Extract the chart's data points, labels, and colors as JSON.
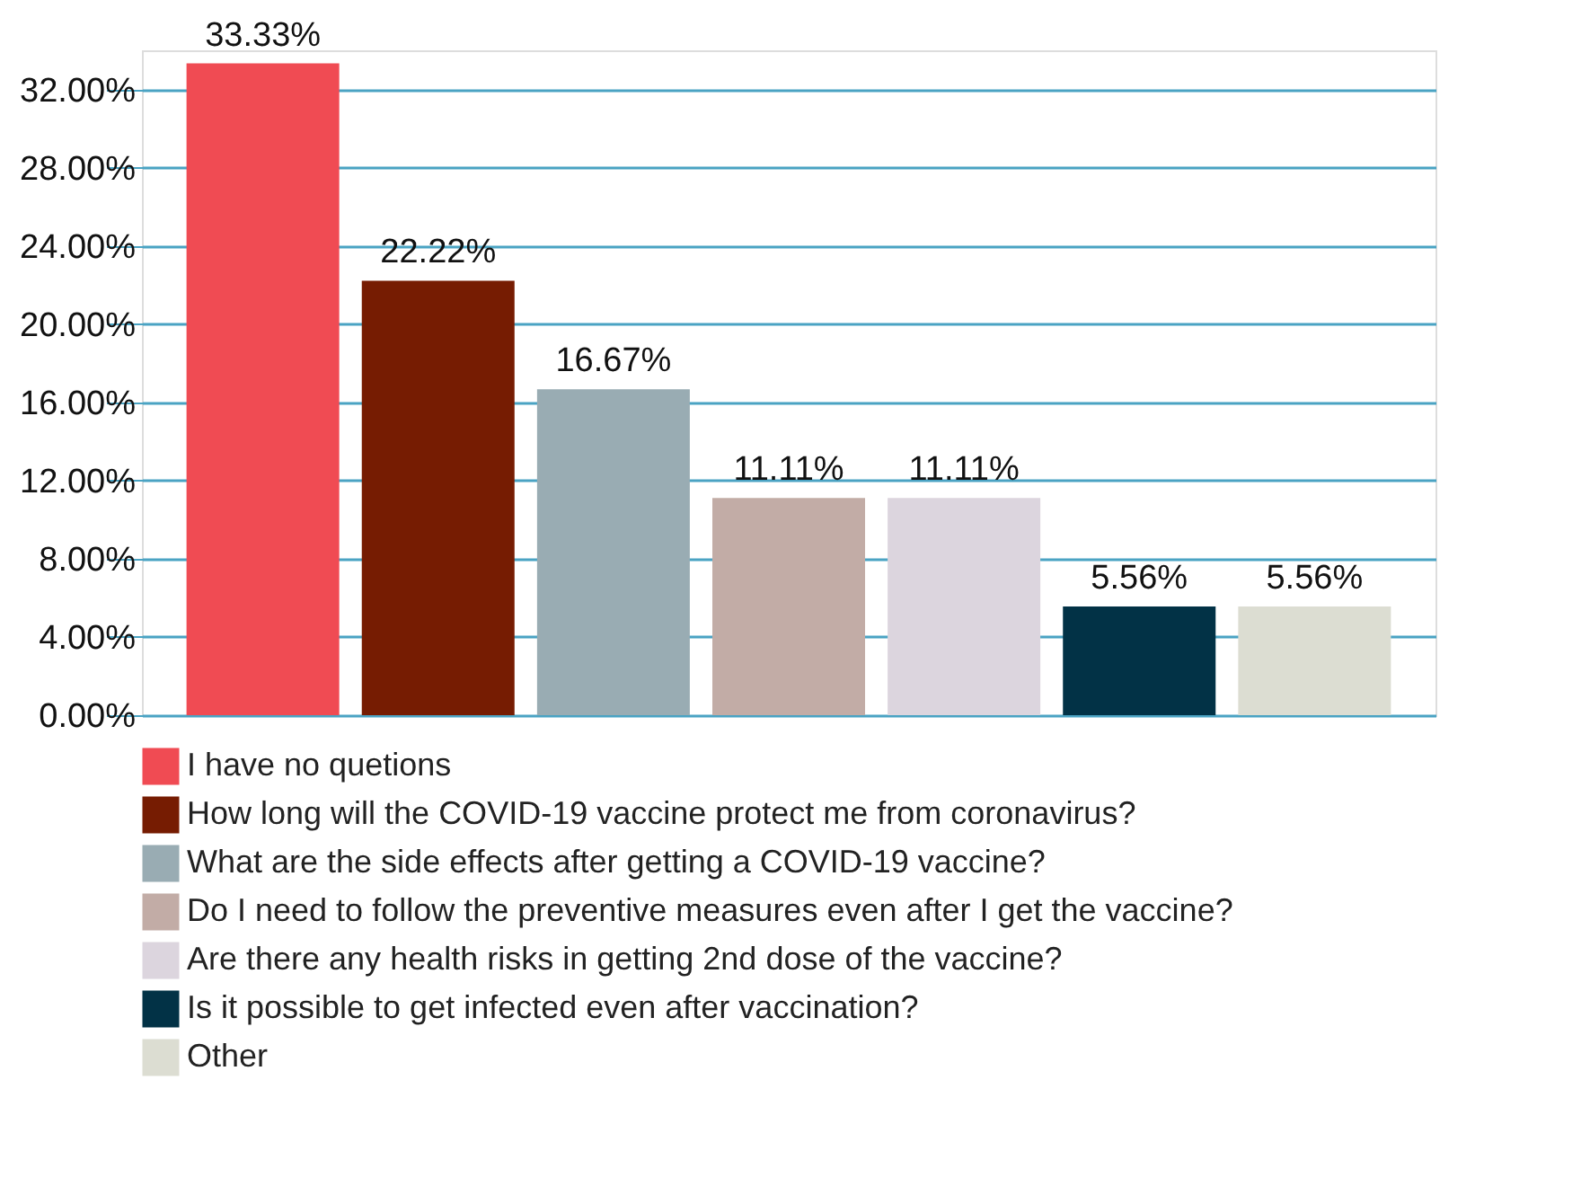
{
  "chart_data": {
    "type": "bar",
    "categories": [
      null,
      null,
      null,
      null,
      null,
      null,
      null
    ],
    "series": [
      {
        "name": "I have no quetions",
        "color": "#f04b53",
        "values": [
          33.33,
          null,
          null,
          null,
          null,
          null,
          null
        ],
        "value_labels": [
          "33.33%",
          null,
          null,
          null,
          null,
          null,
          null
        ]
      },
      {
        "name": "How long will the COVID-19 vaccine protect me from coronavirus?",
        "color": "#761c02",
        "values": [
          null,
          22.22,
          null,
          null,
          null,
          null,
          null
        ],
        "value_labels": [
          null,
          "22.22%",
          null,
          null,
          null,
          null,
          null
        ]
      },
      {
        "name": "What are the side effects after getting a COVID-19 vaccine?",
        "color": "#99acb3",
        "values": [
          null,
          null,
          16.67,
          null,
          null,
          null,
          null
        ],
        "value_labels": [
          null,
          null,
          "16.67%",
          null,
          null,
          null,
          null
        ]
      },
      {
        "name": "Do I need to follow the preventive measures even after I get the vaccine?",
        "color": "#c2aca6",
        "values": [
          null,
          null,
          null,
          11.11,
          null,
          null,
          null
        ],
        "value_labels": [
          null,
          null,
          null,
          "11.11%",
          null,
          null,
          null
        ]
      },
      {
        "name": "Are there any health risks in getting 2nd dose of the vaccine?",
        "color": "#dcd5de",
        "values": [
          null,
          null,
          null,
          null,
          11.11,
          null,
          null
        ],
        "value_labels": [
          null,
          null,
          null,
          null,
          "11.11%",
          null,
          null
        ]
      },
      {
        "name": "Is it possible to get infected even after vaccination?",
        "color": "#023246",
        "values": [
          null,
          null,
          null,
          null,
          null,
          5.56,
          null
        ],
        "value_labels": [
          null,
          null,
          null,
          null,
          null,
          "5.56%",
          null
        ]
      },
      {
        "name": "Other",
        "color": "#dcddd2",
        "values": [
          null,
          null,
          null,
          null,
          null,
          null,
          5.56
        ],
        "value_labels": [
          null,
          null,
          null,
          null,
          null,
          null,
          "5.56%"
        ]
      }
    ],
    "ylim": [
      0,
      34
    ],
    "yticks": [
      {
        "value": 0,
        "label": "0.00%"
      },
      {
        "value": 4,
        "label": "4.00%"
      },
      {
        "value": 8,
        "label": "8.00%"
      },
      {
        "value": 12,
        "label": "12.00%"
      },
      {
        "value": 16,
        "label": "16.00%"
      },
      {
        "value": 20,
        "label": "20.00%"
      },
      {
        "value": 24,
        "label": "24.00%"
      },
      {
        "value": 28,
        "label": "28.00%"
      },
      {
        "value": 32,
        "label": "32.00%"
      }
    ],
    "grid": "y",
    "legend": "bottom",
    "tick_labels": "y"
  }
}
